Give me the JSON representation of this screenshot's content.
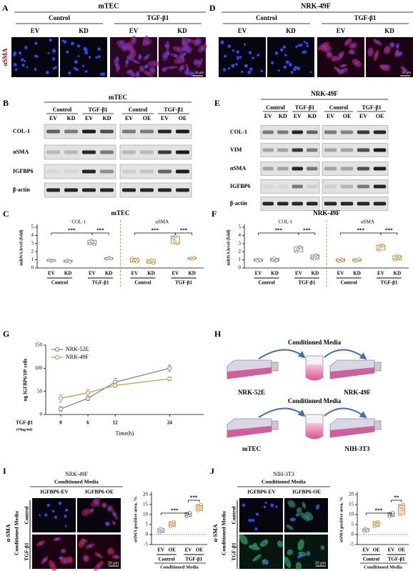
{
  "figure": {
    "A": {
      "letter": "A",
      "title": "mTEC",
      "groups": [
        "Control",
        "TGF-β1"
      ],
      "lanes": [
        "EV",
        "KD",
        "EV",
        "KD"
      ],
      "stain": "αSMA",
      "scale_bar": "50 μm"
    },
    "D": {
      "letter": "D",
      "title": "NRK-49F",
      "groups": [
        "Control",
        "TGF-β1"
      ],
      "lanes": [
        "EV",
        "KD",
        "EV",
        "KD"
      ],
      "scale_bar": "50 μm"
    },
    "B": {
      "letter": "B",
      "title": "mTEC",
      "blots": [
        {
          "groups": [
            "Control",
            "TGF-β1"
          ],
          "lanes": [
            "EV",
            "KD",
            "EV",
            "KD"
          ]
        },
        {
          "groups": [
            "Control",
            "TGF-β1"
          ],
          "lanes": [
            "EV",
            "OE",
            "EV",
            "OE"
          ]
        }
      ],
      "proteins": [
        "COL-1",
        "αSMA",
        "IGFBP6",
        "β-actin"
      ]
    },
    "E": {
      "letter": "E",
      "title": "NRK-49F",
      "blots": [
        {
          "groups": [
            "Control",
            "TGF-β1"
          ],
          "lanes": [
            "EV",
            "KD",
            "EV",
            "KD"
          ]
        },
        {
          "groups": [
            "Control",
            "TGF-β1"
          ],
          "lanes": [
            "EV",
            "OE",
            "EV",
            "OE"
          ]
        }
      ],
      "proteins": [
        "COL-1",
        "VIM",
        "αSMA",
        "IGFBP6",
        "β-actin"
      ]
    },
    "H": {
      "letter": "H",
      "media": [
        "Conditioned Media",
        "Conditioned Media"
      ],
      "cells": [
        "NRK-52E",
        "NRK-49F",
        "mTEC",
        "NIH-3T3"
      ]
    },
    "I": {
      "letter": "I",
      "title": "NRK-49F",
      "media": "Conditioned Media",
      "columns": [
        "IGFBP6-EV",
        "IGFBP6-OE"
      ],
      "rows": [
        "Control",
        "TGF-β1"
      ],
      "stain": "α-SMA",
      "side": "Conditioned Media",
      "scale_bar": "20 μm"
    },
    "J": {
      "letter": "J",
      "title": "NIH-3T3",
      "media": "Conditioned Media",
      "columns": [
        "IGFBP6-EV",
        "IGFBP6-OE"
      ],
      "rows": [
        "Control",
        "TGF-β1"
      ],
      "stain": "α-SMA",
      "side": "Conditioned Media",
      "scale_bar": "20 μm"
    }
  },
  "chart_data": [
    {
      "type": "box",
      "label": "C",
      "title": "mTEC",
      "ylabel": "mRNA level (fold)",
      "ylim": [
        0,
        5
      ],
      "yticks": [
        0,
        1,
        2,
        3,
        4,
        5
      ],
      "panels": [
        {
          "name": "COL-1",
          "categories": [
            "EV",
            "KD",
            "EV",
            "KD"
          ],
          "groups": [
            "Control",
            "TGF-β1"
          ],
          "colors": [
            "#7f7f7f",
            "#7f7f7f",
            "#7f7f7f",
            "#7f7f7f"
          ],
          "points": [
            [
              1.0,
              0.85,
              0.95,
              0.9
            ],
            [
              0.8,
              0.95,
              0.85,
              0.75
            ],
            [
              3.0,
              3.4,
              3.2,
              2.9
            ],
            [
              1.1,
              1.2,
              1.25,
              1.15
            ]
          ],
          "significance": [
            "***",
            "***"
          ]
        },
        {
          "name": "αSMA",
          "categories": [
            "EV",
            "KD",
            "EV",
            "KD"
          ],
          "groups": [
            "Control",
            "TGF-β1"
          ],
          "colors": [
            "#b8862e",
            "#b8862e",
            "#b8862e",
            "#b8862e"
          ],
          "points": [
            [
              1.2,
              0.9,
              1.0,
              0.75
            ],
            [
              0.7,
              0.85,
              1.0,
              0.6
            ],
            [
              3.7,
              3.3,
              3.9,
              3.0
            ],
            [
              1.15,
              1.2,
              1.1,
              1.25
            ]
          ],
          "significance": [
            "***",
            "***"
          ]
        }
      ]
    },
    {
      "type": "box",
      "label": "F",
      "title": "NRK-49F",
      "ylabel": "mRNA level (fold)",
      "ylim": [
        0,
        5
      ],
      "yticks": [
        0,
        1,
        2,
        3,
        4,
        5
      ],
      "panels": [
        {
          "name": "COL-1",
          "categories": [
            "EV",
            "KD",
            "EV",
            "KD"
          ],
          "groups": [
            "Control",
            "TGF-β1"
          ],
          "colors": [
            "#7f7f7f",
            "#7f7f7f",
            "#7f7f7f",
            "#7f7f7f"
          ],
          "points": [
            [
              1.0,
              0.85,
              1.1,
              0.95
            ],
            [
              1.0,
              1.2,
              0.85,
              0.95
            ],
            [
              2.0,
              2.3,
              2.6,
              2.5
            ],
            [
              1.3,
              1.1,
              1.6,
              1.4
            ]
          ],
          "significance": [
            "***",
            "***"
          ]
        },
        {
          "name": "αSMA",
          "categories": [
            "EV",
            "KD",
            "EV",
            "KD"
          ],
          "groups": [
            "Control",
            "TGF-β1"
          ],
          "colors": [
            "#b8862e",
            "#b8862e",
            "#b8862e",
            "#b8862e"
          ],
          "points": [
            [
              1.0,
              0.8,
              1.1,
              0.95
            ],
            [
              0.85,
              1.0,
              0.95,
              1.1
            ],
            [
              2.2,
              2.6,
              2.8,
              2.7
            ],
            [
              1.0,
              1.5,
              1.2,
              1.4
            ]
          ],
          "significance": [
            "***",
            "***"
          ]
        }
      ]
    },
    {
      "type": "line",
      "label": "G",
      "xlabel": "Time(h)",
      "ylabel": "ng IGFBP6/10⁶ cells",
      "treatment": [
        "TGF-β1",
        "(10ng/ml)"
      ],
      "x": [
        0,
        6,
        12,
        24
      ],
      "xlim": [
        -3.3,
        31.5
      ],
      "xticks": [
        0,
        6,
        12,
        24
      ],
      "ylim": [
        0,
        150
      ],
      "yticks": [
        0,
        50,
        100,
        150
      ],
      "legend": "upper left",
      "series": [
        {
          "name": "NRK-52E",
          "color": "#808080",
          "values": [
            12,
            35,
            70,
            100
          ],
          "errors": [
            5,
            5,
            8,
            7
          ]
        },
        {
          "name": "NRK-49F",
          "color": "#c8963e",
          "values": [
            35,
            47,
            63,
            77
          ],
          "errors": [
            8,
            7,
            5,
            4
          ]
        }
      ]
    },
    {
      "type": "box",
      "ylabel": "αSMA positive area, %",
      "xlabel": "Conditioned Media",
      "ylim": [
        -5,
        20
      ],
      "yticks": [
        -5,
        0,
        5,
        10,
        15,
        20
      ],
      "panels": [
        {
          "categories": [
            "EV",
            "OE",
            "EV",
            "OE"
          ],
          "groups": [
            "Control",
            "TGF-β1"
          ],
          "colors": [
            "#8e8aa6",
            "#d08a3c",
            "#7a7a7a",
            "#d08a3c"
          ],
          "points": [
            [
              1,
              3,
              2,
              2.5
            ],
            [
              4,
              6,
              5,
              6.5
            ],
            [
              9,
              10.5,
              9.5,
              11
            ],
            [
              12,
              14,
              13.5,
              15
            ]
          ],
          "significance": [
            "***",
            "***"
          ]
        }
      ]
    },
    {
      "type": "box",
      "ylabel": "αSMA positive area, %",
      "xlabel": "Conditioned Media",
      "ylim": [
        -5,
        20
      ],
      "yticks": [
        -5,
        0,
        5,
        10,
        15,
        20
      ],
      "panels": [
        {
          "categories": [
            "EV",
            "OE",
            "EV",
            "OE"
          ],
          "groups": [
            "Control",
            "TGF-β1"
          ],
          "colors": [
            "#8e8aa6",
            "#d08a3c",
            "#7a7a7a",
            "#d08a3c"
          ],
          "points": [
            [
              1.5,
              3,
              2.5,
              2
            ],
            [
              4,
              5.5,
              5,
              6.5
            ],
            [
              9,
              10.5,
              10,
              11
            ],
            [
              10,
              14,
              12.5,
              15
            ]
          ],
          "significance": [
            "***",
            "**"
          ]
        }
      ]
    }
  ]
}
